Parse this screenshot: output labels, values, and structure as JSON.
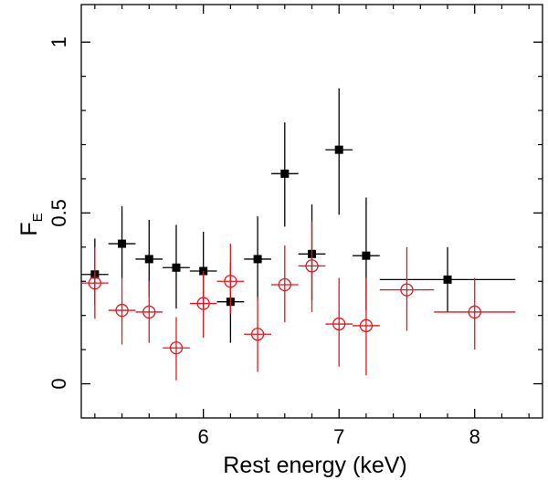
{
  "chart_data": {
    "type": "scatter",
    "title": "",
    "xlabel": "Rest energy (keV)",
    "ylabel": {
      "main": "F",
      "sub": "E"
    },
    "xlim": [
      5.1,
      8.5
    ],
    "ylim": [
      -0.1,
      1.11
    ],
    "x_ticks": [
      {
        "value": 6,
        "label": "6"
      },
      {
        "value": 7,
        "label": "7"
      },
      {
        "value": 8,
        "label": "8"
      }
    ],
    "x_minor_ticks": [
      5.2,
      5.4,
      5.6,
      5.8,
      6.2,
      6.4,
      6.6,
      6.8,
      7.2,
      7.4,
      7.6,
      7.8,
      8.2,
      8.4
    ],
    "y_ticks": [
      {
        "value": 0,
        "label": "0"
      },
      {
        "value": 0.5,
        "label": "0.5"
      },
      {
        "value": 1,
        "label": "1"
      }
    ],
    "y_minor_ticks": [
      0.1,
      0.2,
      0.3,
      0.4,
      0.6,
      0.7,
      0.8,
      0.9
    ],
    "grid": false,
    "series": [
      {
        "name": "black squares",
        "color": "#000000",
        "marker": "square",
        "points": [
          {
            "x": 5.2,
            "xerr": 0.1,
            "y": 0.32,
            "ylo": 0.23,
            "yhi": 0.425
          },
          {
            "x": 5.4,
            "xerr": 0.1,
            "y": 0.41,
            "ylo": 0.31,
            "yhi": 0.52
          },
          {
            "x": 5.6,
            "xerr": 0.1,
            "y": 0.365,
            "ylo": 0.255,
            "yhi": 0.48
          },
          {
            "x": 5.8,
            "xerr": 0.1,
            "y": 0.34,
            "ylo": 0.22,
            "yhi": 0.465
          },
          {
            "x": 6.0,
            "xerr": 0.1,
            "y": 0.33,
            "ylo": 0.22,
            "yhi": 0.445
          },
          {
            "x": 6.2,
            "xerr": 0.1,
            "y": 0.24,
            "ylo": 0.12,
            "yhi": 0.355
          },
          {
            "x": 6.4,
            "xerr": 0.1,
            "y": 0.365,
            "ylo": 0.245,
            "yhi": 0.49
          },
          {
            "x": 6.6,
            "xerr": 0.1,
            "y": 0.615,
            "ylo": 0.46,
            "yhi": 0.765
          },
          {
            "x": 6.8,
            "xerr": 0.1,
            "y": 0.38,
            "ylo": 0.245,
            "yhi": 0.525
          },
          {
            "x": 7.0,
            "xerr": 0.1,
            "y": 0.685,
            "ylo": 0.495,
            "yhi": 0.865
          },
          {
            "x": 7.2,
            "xerr": 0.1,
            "y": 0.375,
            "ylo": 0.215,
            "yhi": 0.545
          },
          {
            "x": 7.8,
            "xerr": 0.5,
            "y": 0.305,
            "ylo": 0.21,
            "yhi": 0.4
          }
        ]
      },
      {
        "name": "red circles",
        "color": "#e8141a",
        "marker": "circle",
        "points": [
          {
            "x": 5.2,
            "xerr": 0.1,
            "y": 0.295,
            "ylo": 0.19,
            "yhi": 0.4
          },
          {
            "x": 5.4,
            "xerr": 0.1,
            "y": 0.215,
            "ylo": 0.115,
            "yhi": 0.31
          },
          {
            "x": 5.6,
            "xerr": 0.1,
            "y": 0.21,
            "ylo": 0.12,
            "yhi": 0.3
          },
          {
            "x": 5.8,
            "xerr": 0.1,
            "y": 0.105,
            "ylo": 0.01,
            "yhi": 0.195
          },
          {
            "x": 6.0,
            "xerr": 0.1,
            "y": 0.235,
            "ylo": 0.135,
            "yhi": 0.33
          },
          {
            "x": 6.2,
            "xerr": 0.1,
            "y": 0.3,
            "ylo": 0.205,
            "yhi": 0.41
          },
          {
            "x": 6.4,
            "xerr": 0.1,
            "y": 0.145,
            "ylo": 0.035,
            "yhi": 0.255
          },
          {
            "x": 6.6,
            "xerr": 0.1,
            "y": 0.29,
            "ylo": 0.18,
            "yhi": 0.405
          },
          {
            "x": 6.8,
            "xerr": 0.1,
            "y": 0.345,
            "ylo": 0.21,
            "yhi": 0.475
          },
          {
            "x": 7.0,
            "xerr": 0.1,
            "y": 0.175,
            "ylo": 0.05,
            "yhi": 0.31
          },
          {
            "x": 7.2,
            "xerr": 0.1,
            "y": 0.17,
            "ylo": 0.025,
            "yhi": 0.31
          },
          {
            "x": 7.5,
            "xerr": 0.2,
            "y": 0.275,
            "ylo": 0.155,
            "yhi": 0.4
          },
          {
            "x": 8.0,
            "xerr": 0.3,
            "y": 0.21,
            "ylo": 0.1,
            "yhi": 0.31
          }
        ]
      }
    ]
  }
}
